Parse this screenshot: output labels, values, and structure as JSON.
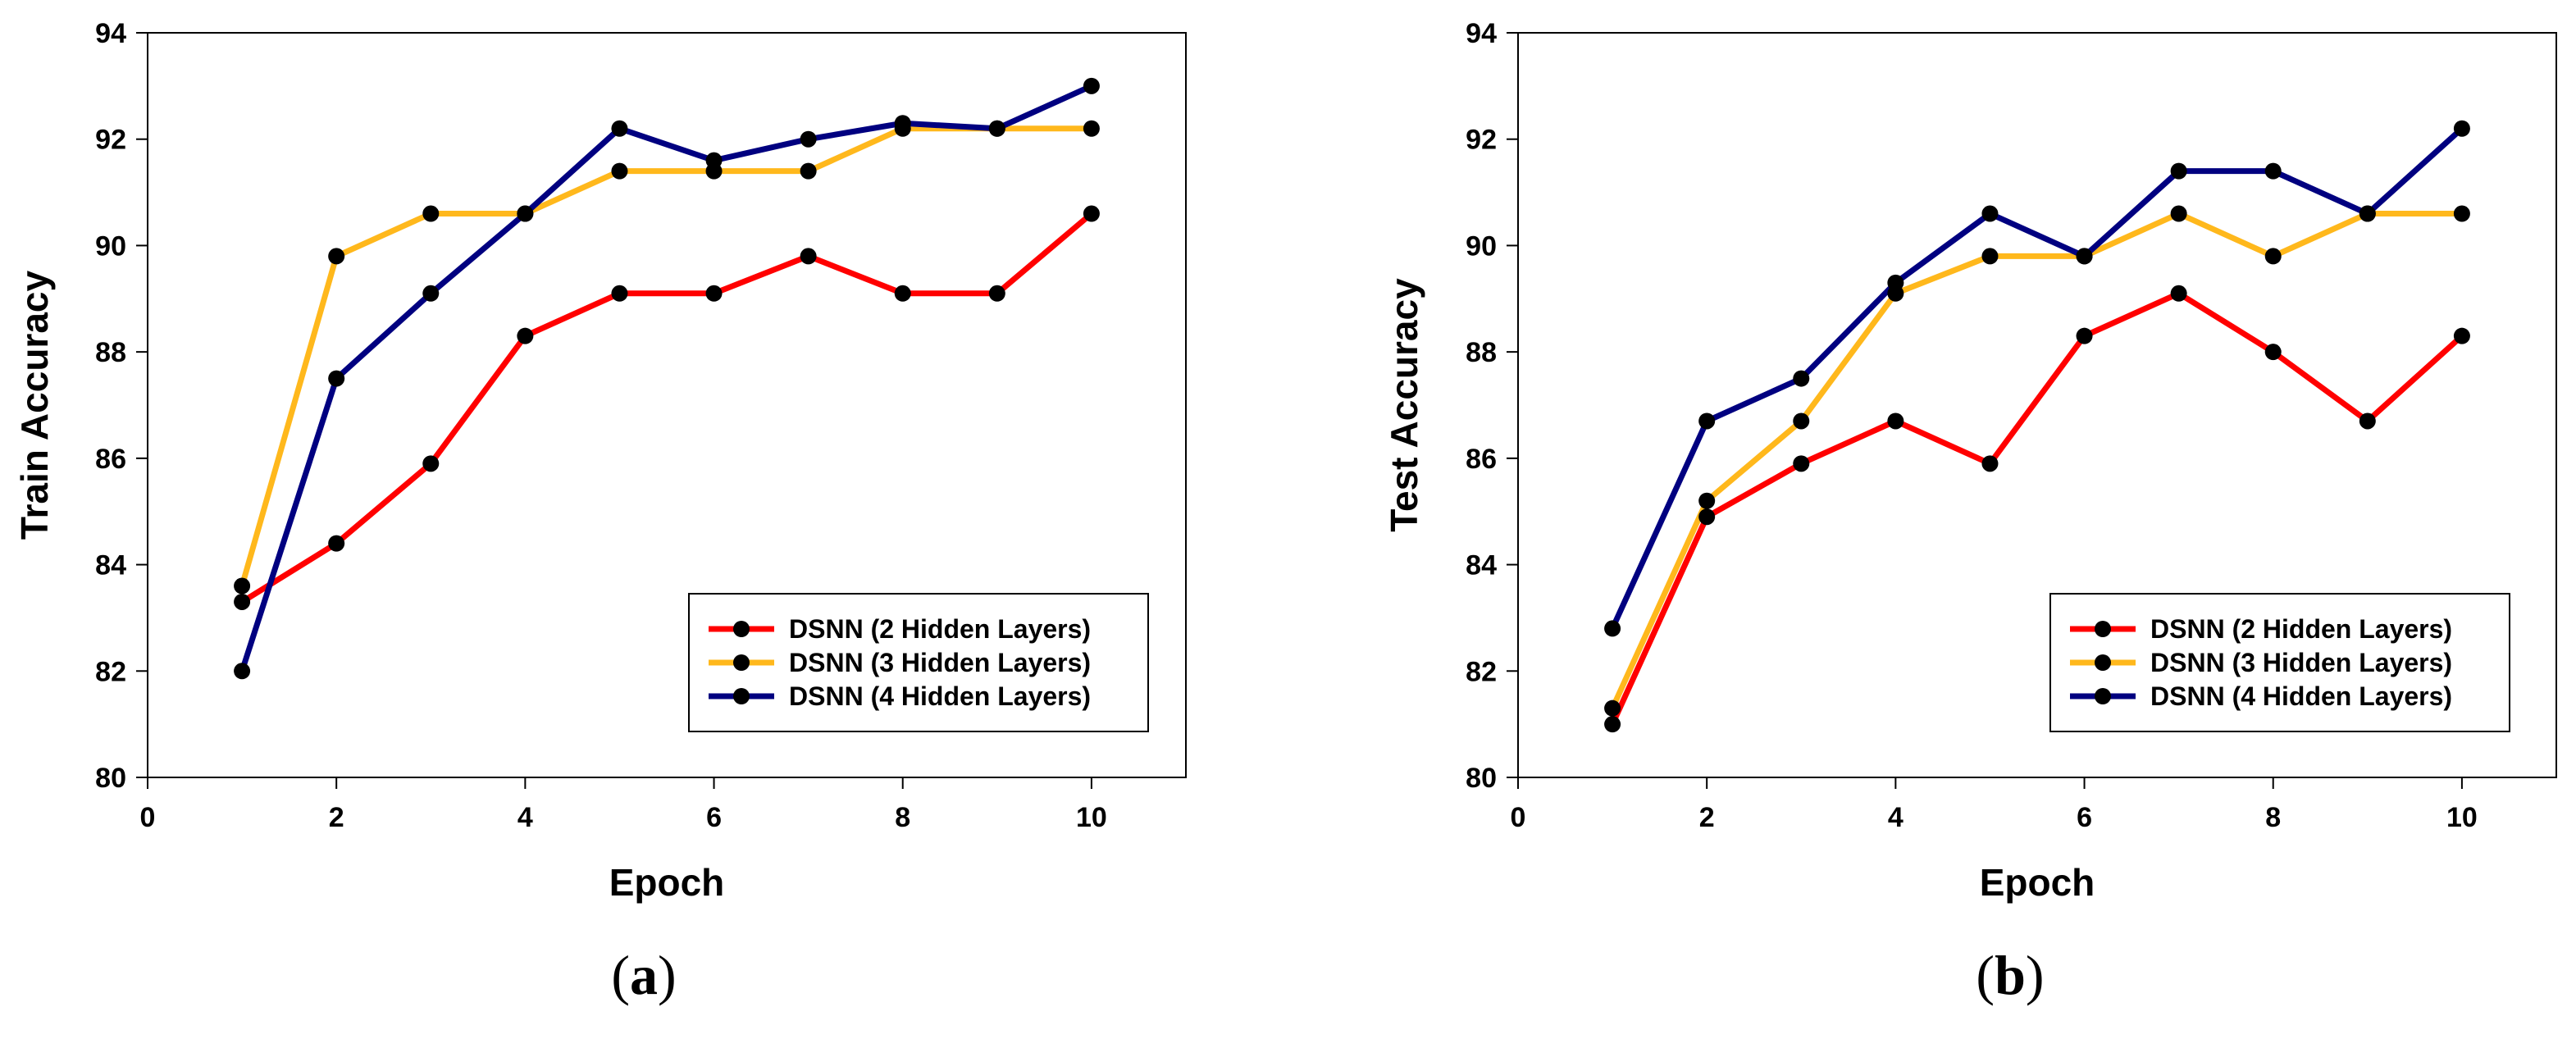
{
  "chart_data": [
    {
      "type": "line",
      "panel_label": "a",
      "title": "",
      "xlabel": "Epoch",
      "ylabel": "Train Accuracy",
      "xlim": [
        0,
        11
      ],
      "ylim": [
        80,
        94
      ],
      "xticks": [
        0,
        2,
        4,
        6,
        8,
        10
      ],
      "yticks": [
        80,
        82,
        84,
        86,
        88,
        90,
        92,
        94
      ],
      "legend_position": "bottom-right",
      "x": [
        1,
        2,
        3,
        4,
        5,
        6,
        7,
        8,
        9,
        10
      ],
      "series": [
        {
          "name": "DSNN (2 Hidden Layers)",
          "color": "#ff0000",
          "values": [
            83.3,
            84.4,
            85.9,
            88.3,
            89.1,
            89.1,
            89.8,
            89.1,
            89.1,
            90.6
          ]
        },
        {
          "name": "DSNN (3 Hidden Layers)",
          "color": "#ffb81c",
          "values": [
            83.6,
            89.8,
            90.6,
            90.6,
            91.4,
            91.4,
            91.4,
            92.2,
            92.2,
            92.2
          ]
        },
        {
          "name": "DSNN (4 Hidden Layers)",
          "color": "#000080",
          "values": [
            82.0,
            87.5,
            89.1,
            90.6,
            92.2,
            91.6,
            92.0,
            92.3,
            92.2,
            93.0
          ]
        }
      ]
    },
    {
      "type": "line",
      "panel_label": "b",
      "title": "",
      "xlabel": "Epoch",
      "ylabel": "Test Accuracy",
      "xlim": [
        0,
        11
      ],
      "ylim": [
        80,
        94
      ],
      "xticks": [
        0,
        2,
        4,
        6,
        8,
        10
      ],
      "yticks": [
        80,
        82,
        84,
        86,
        88,
        90,
        92,
        94
      ],
      "legend_position": "bottom-right",
      "x": [
        1,
        2,
        3,
        4,
        5,
        6,
        7,
        8,
        9,
        10
      ],
      "series": [
        {
          "name": "DSNN (2 Hidden Layers)",
          "color": "#ff0000",
          "values": [
            81.0,
            84.9,
            85.9,
            86.7,
            85.9,
            88.3,
            89.1,
            88.0,
            86.7,
            88.3
          ]
        },
        {
          "name": "DSNN (3 Hidden Layers)",
          "color": "#ffb81c",
          "values": [
            81.3,
            85.2,
            86.7,
            89.1,
            89.8,
            89.8,
            90.6,
            89.8,
            90.6,
            90.6
          ]
        },
        {
          "name": "DSNN (4 Hidden Layers)",
          "color": "#000080",
          "values": [
            82.8,
            86.7,
            87.5,
            89.3,
            90.6,
            89.8,
            91.4,
            91.4,
            90.6,
            92.2
          ]
        }
      ]
    }
  ]
}
